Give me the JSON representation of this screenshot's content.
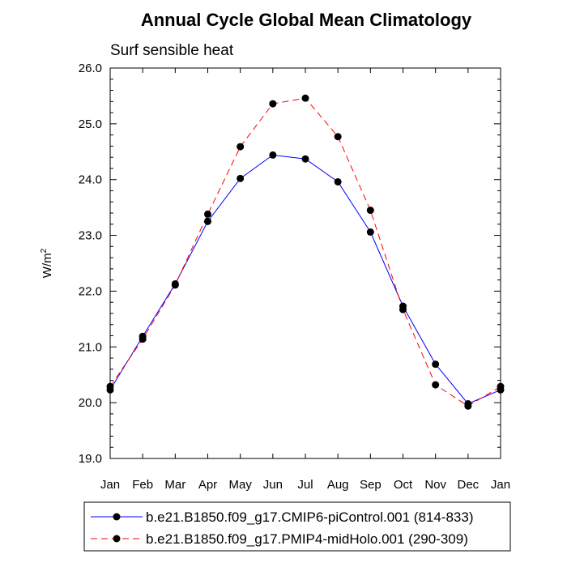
{
  "chart_data": {
    "type": "line",
    "title": "Annual Cycle Global Mean Climatology",
    "subtitle": "Surf sensible heat",
    "ylabel": "W/m",
    "ylabel_sup": "2",
    "categories": [
      "Jan",
      "Feb",
      "Mar",
      "Apr",
      "May",
      "Jun",
      "Jul",
      "Aug",
      "Sep",
      "Oct",
      "Nov",
      "Dec",
      "Jan"
    ],
    "ylim": [
      19.0,
      26.0
    ],
    "yticks": [
      "19.0",
      "20.0",
      "21.0",
      "22.0",
      "23.0",
      "24.0",
      "25.0",
      "26.0"
    ],
    "grid": false,
    "legend_position": "bottom",
    "series": [
      {
        "name": "b.e21.B1850.f09_g17.CMIP6-piControl.001 (814-833)",
        "color": "#0000ff",
        "dash": "solid",
        "values": [
          20.23,
          21.19,
          22.13,
          23.25,
          24.02,
          24.44,
          24.37,
          23.96,
          23.06,
          21.73,
          20.69,
          19.98,
          20.23
        ]
      },
      {
        "name": "b.e21.B1850.f09_g17.PMIP4-midHolo.001 (290-309)",
        "color": "#ff0000",
        "dash": "dashed",
        "values": [
          20.29,
          21.14,
          22.11,
          23.38,
          24.59,
          25.36,
          25.46,
          24.77,
          23.45,
          21.67,
          20.32,
          19.94,
          20.29
        ]
      }
    ]
  }
}
